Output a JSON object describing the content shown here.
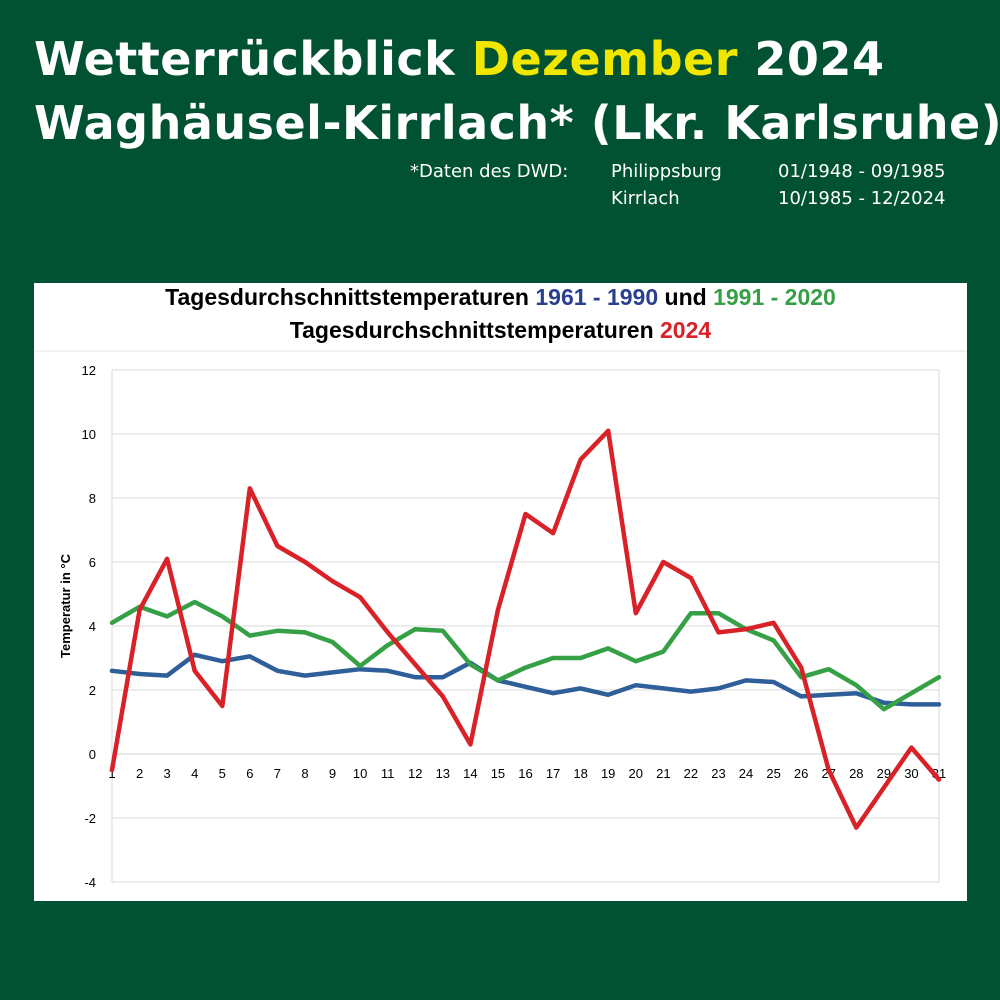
{
  "header": {
    "title_line1_a": "Wetterrückblick ",
    "title_line1_month": "Dezember",
    "title_line1_b": " 2024",
    "title_line2": "Waghäusel-Kirrlach* (Lkr. Karlsruhe)",
    "source_label": "*Daten des DWD:",
    "source_rows": [
      {
        "station": "Philippsburg",
        "period": "01/1948 - 09/1985"
      },
      {
        "station": "Kirrlach",
        "period": "10/1985 - 12/2024"
      }
    ]
  },
  "colors": {
    "background": "#005232",
    "highlight": "#f1e600",
    "series_1961_1990": "#2e5f99",
    "series_1991_2020": "#36a046",
    "series_2024": "#d92128"
  },
  "chart_data": {
    "type": "line",
    "title_line1_a": "Tagesdurchschnittstemperaturen ",
    "title_line1_period1": "1961 - 1990",
    "title_line1_und": " und ",
    "title_line1_period2": "1991 - 2020",
    "title_line2_a": "Tagesdurchschnittstemperaturen ",
    "title_line2_year": "2024",
    "ylabel": "Temperatur in °C",
    "xlabel": "",
    "ylim": [
      -4,
      12
    ],
    "yticks": [
      -4,
      -2,
      0,
      2,
      4,
      6,
      8,
      10,
      12
    ],
    "grid": true,
    "legend": "none",
    "x": [
      1,
      2,
      3,
      4,
      5,
      6,
      7,
      8,
      9,
      10,
      11,
      12,
      13,
      14,
      15,
      16,
      17,
      18,
      19,
      20,
      21,
      22,
      23,
      24,
      25,
      26,
      27,
      28,
      29,
      30,
      31
    ],
    "series": [
      {
        "name": "1961 - 1990",
        "color": "#2e5f99",
        "values": [
          2.6,
          2.5,
          2.45,
          3.1,
          2.9,
          3.05,
          2.6,
          2.45,
          2.55,
          2.65,
          2.6,
          2.4,
          2.4,
          2.85,
          2.3,
          2.1,
          1.9,
          2.05,
          1.85,
          2.15,
          2.05,
          1.95,
          2.05,
          2.3,
          2.25,
          1.8,
          1.85,
          1.9,
          1.6,
          1.55,
          1.55
        ]
      },
      {
        "name": "1991 - 2020",
        "color": "#36a046",
        "values": [
          4.1,
          4.6,
          4.3,
          4.75,
          4.3,
          3.7,
          3.85,
          3.8,
          3.5,
          2.75,
          3.4,
          3.9,
          3.85,
          2.8,
          2.3,
          2.7,
          3.0,
          3.0,
          3.3,
          2.9,
          3.2,
          4.4,
          4.4,
          3.9,
          3.55,
          2.4,
          2.65,
          2.15,
          1.4,
          1.9,
          2.4
        ]
      },
      {
        "name": "2024",
        "color": "#d92128",
        "values": [
          -0.5,
          4.5,
          6.1,
          2.6,
          1.5,
          8.3,
          6.5,
          6.0,
          5.4,
          4.9,
          3.8,
          2.8,
          1.8,
          0.3,
          4.5,
          7.5,
          6.9,
          9.2,
          10.1,
          4.4,
          6.0,
          5.5,
          3.8,
          3.9,
          4.1,
          2.7,
          -0.5,
          -2.3,
          -1.05,
          0.2,
          -0.8
        ]
      }
    ]
  }
}
